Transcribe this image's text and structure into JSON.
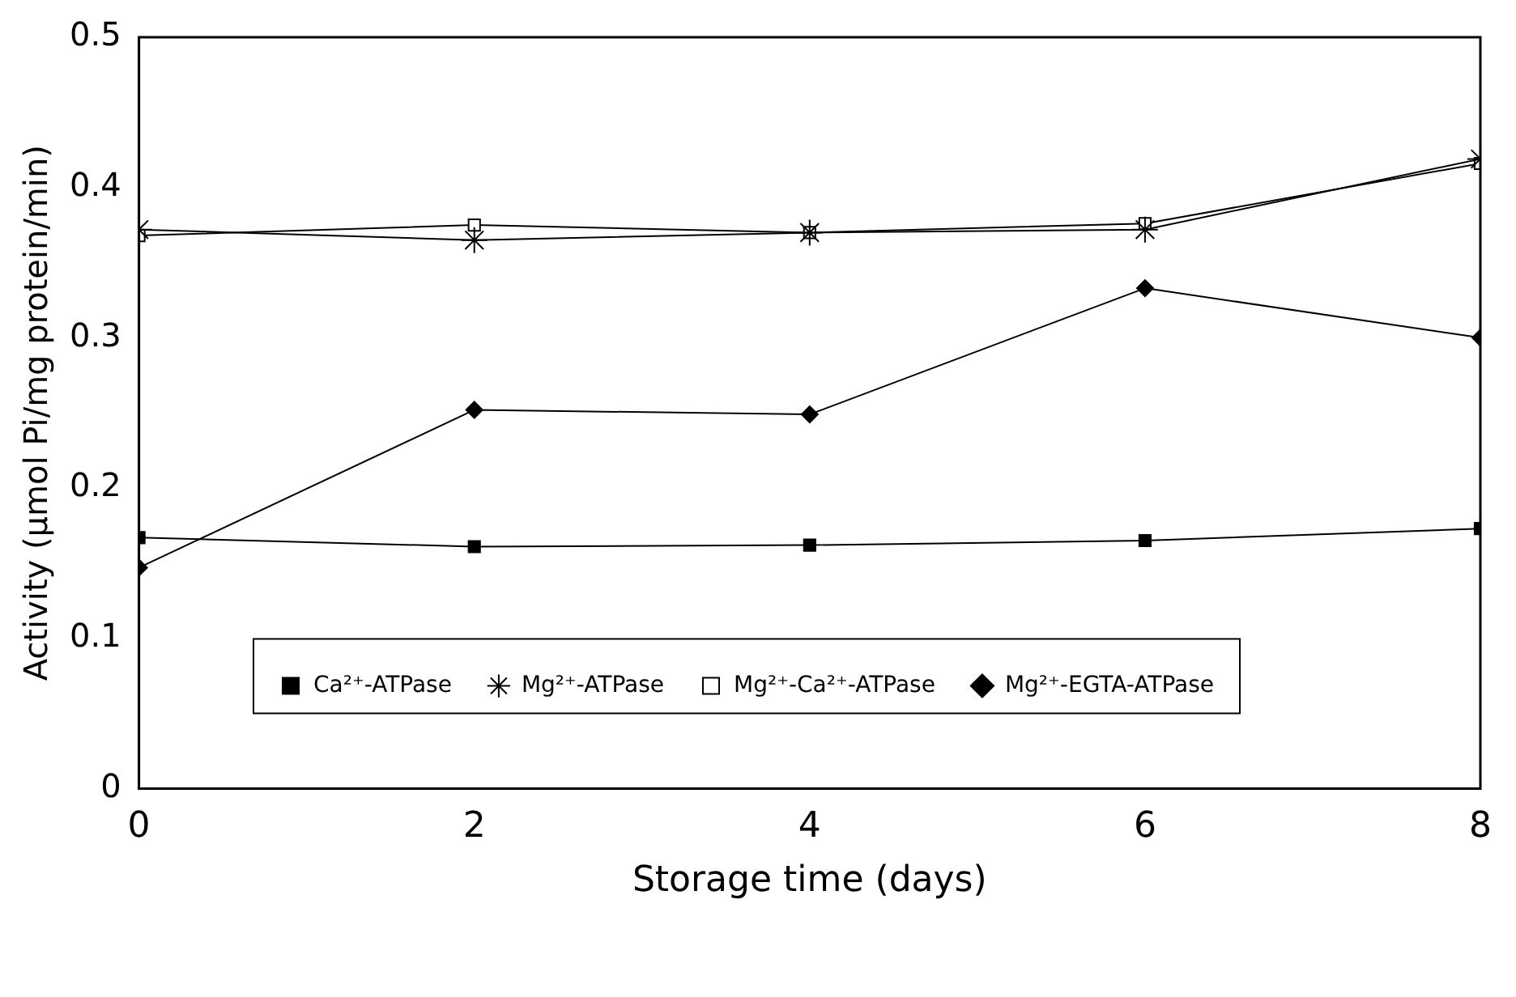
{
  "chart_data": {
    "type": "line",
    "xlabel": "Storage time (days)",
    "ylabel": "Activity (μmol Pi/mg protein/min)",
    "x": [
      0,
      2,
      4,
      6,
      8
    ],
    "xlim": [
      0,
      8
    ],
    "xticks": [
      0,
      2,
      4,
      6,
      8
    ],
    "ylim": [
      0,
      0.5
    ],
    "yticks": [
      0,
      0.1,
      0.2,
      0.3,
      0.4,
      0.5
    ],
    "legend": "bottom",
    "grid": false,
    "line_style": "solid",
    "series": [
      {
        "name": "Ca²⁺-ATPase",
        "color": "#000000",
        "marker": "square",
        "values": [
          0.167,
          0.161,
          0.162,
          0.165,
          0.173
        ]
      },
      {
        "name": "Mg²⁺-ATPase",
        "color": "#000000",
        "marker": "cross",
        "values": [
          0.372,
          0.365,
          0.37,
          0.372,
          0.419
        ]
      },
      {
        "name": "Mg²⁺-Ca²⁺-ATPase",
        "color": "#000000",
        "marker": "square",
        "values": [
          0.368,
          0.375,
          0.37,
          0.376,
          0.416
        ]
      },
      {
        "name": "Mg²⁺-EGTA-ATPase",
        "color": "#000000",
        "marker": "diamond",
        "values": [
          0.147,
          0.252,
          0.249,
          0.333,
          0.3
        ]
      }
    ]
  }
}
